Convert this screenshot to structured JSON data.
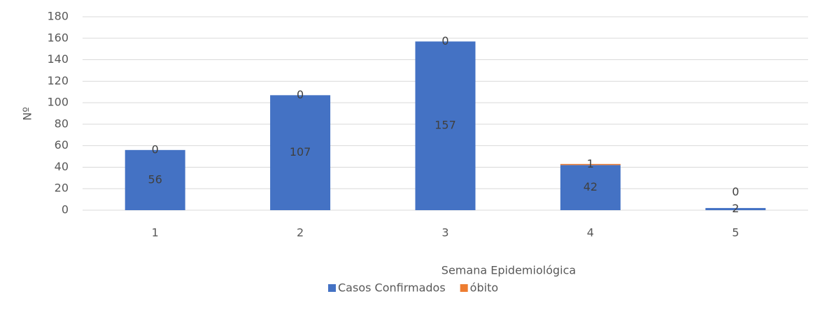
{
  "chart_data": {
    "type": "bar",
    "stacked": true,
    "x_label": "Semana Epidemiológica",
    "y_label": "Nº",
    "categories": [
      "1",
      "2",
      "3",
      "4",
      "5"
    ],
    "series": [
      {
        "name": "Casos Confirmados",
        "color": "#4472c4",
        "values": [
          56,
          107,
          157,
          42,
          2
        ]
      },
      {
        "name": "óbito",
        "color": "#ed7d31",
        "values": [
          0,
          0,
          0,
          1,
          0
        ]
      }
    ],
    "ylim": [
      0,
      180
    ],
    "yticks": [
      0,
      20,
      40,
      60,
      80,
      100,
      120,
      140,
      160,
      180
    ],
    "grid": true,
    "legend": "bottom"
  }
}
